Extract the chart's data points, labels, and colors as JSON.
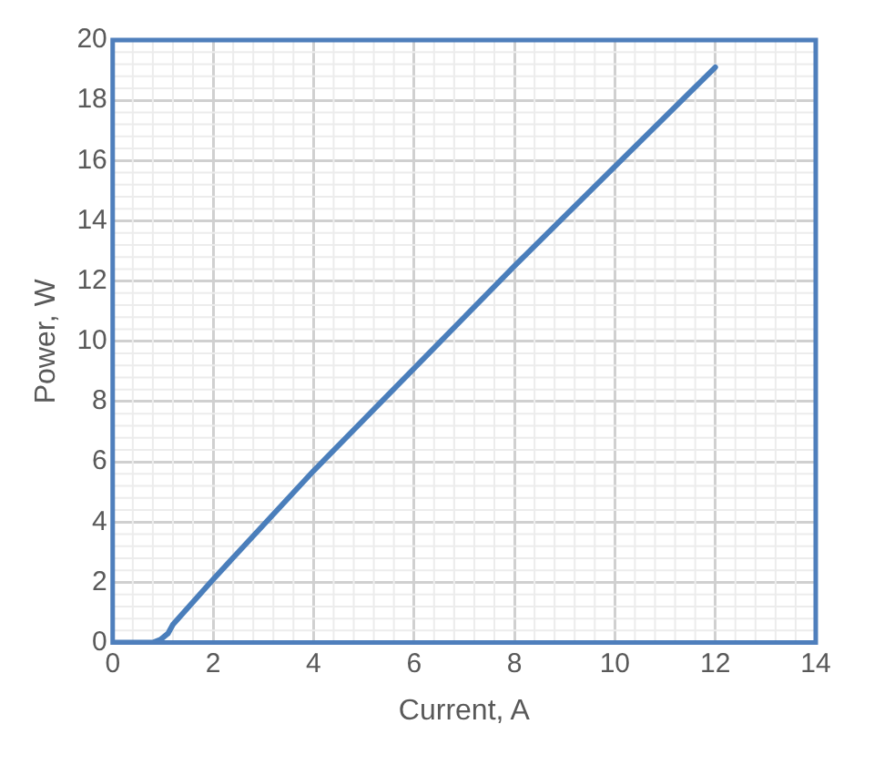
{
  "chart_data": {
    "type": "line",
    "xlabel": "Current, A",
    "ylabel": "Power, W",
    "x": [
      0,
      0.8,
      0.95,
      1.1,
      1.2,
      2,
      4,
      6,
      8,
      10,
      12
    ],
    "series": [
      {
        "color": "#4a7ebb",
        "values": [
          0,
          0,
          0.1,
          0.3,
          0.6,
          2.1,
          5.7,
          9.1,
          12.5,
          15.8,
          19.1
        ]
      }
    ],
    "xlim": [
      0,
      14
    ],
    "xticks": [
      0,
      2,
      4,
      6,
      8,
      10,
      12,
      14
    ],
    "ylim": [
      0,
      20
    ],
    "yticks": [
      0,
      2,
      4,
      6,
      8,
      10,
      12,
      14,
      16,
      18,
      20
    ],
    "grid": true,
    "legend": false,
    "marker": "none",
    "line_style": "solid"
  }
}
